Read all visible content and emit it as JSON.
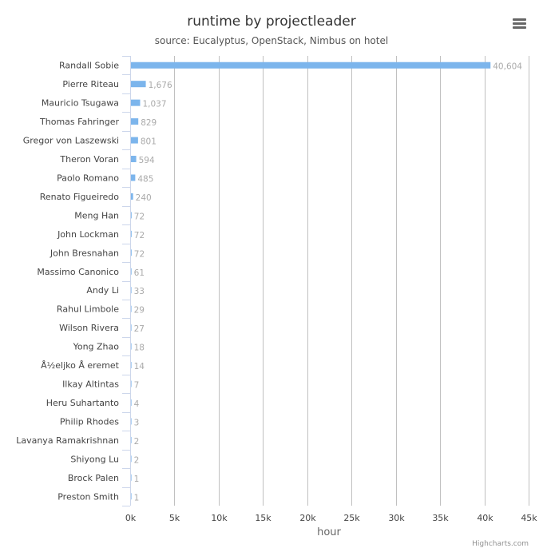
{
  "chart_data": {
    "type": "bar",
    "orientation": "horizontal",
    "title": "runtime by projectleader",
    "subtitle": "source: Eucalyptus, OpenStack, Nimbus on hotel",
    "xlabel": "",
    "ylabel": "hour",
    "categories": [
      "Randall Sobie",
      "Pierre Riteau",
      "Mauricio Tsugawa",
      "Thomas Fahringer",
      "Gregor von Laszewski",
      "Theron Voran",
      "Paolo Romano",
      "Renato Figueiredo",
      "Meng Han",
      "John Lockman",
      "John Bresnahan",
      "Massimo Canonico",
      "Andy Li",
      "Rahul Limbole",
      "Wilson Rivera",
      "Yong Zhao",
      "Å½eljko Å eremet",
      "Ilkay Altintas",
      "Heru Suhartanto",
      "Philip Rhodes",
      "Lavanya Ramakrishnan",
      "Shiyong Lu",
      "Brock Palen",
      "Preston Smith"
    ],
    "values": [
      40604,
      1676,
      1037,
      829,
      801,
      594,
      485,
      240,
      72,
      72,
      72,
      61,
      33,
      29,
      27,
      18,
      14,
      7,
      4,
      3,
      2,
      2,
      1,
      1
    ],
    "data_labels": [
      "40,604",
      "1,676",
      "1,037",
      "829",
      "801",
      "594",
      "485",
      "240",
      "72",
      "72",
      "72",
      "61",
      "33",
      "29",
      "27",
      "18",
      "14",
      "7",
      "4",
      "3",
      "2",
      "2",
      "1",
      "1"
    ],
    "value_axis_ticks": [
      "0k",
      "5k",
      "10k",
      "15k",
      "20k",
      "25k",
      "30k",
      "35k",
      "40k",
      "45k"
    ],
    "value_axis_range": [
      0,
      45000
    ],
    "grid": true,
    "legend": "none",
    "bar_color": "#7cb5ec"
  },
  "credits": "Highcharts.com",
  "menu_icon": "hamburger-menu-icon"
}
